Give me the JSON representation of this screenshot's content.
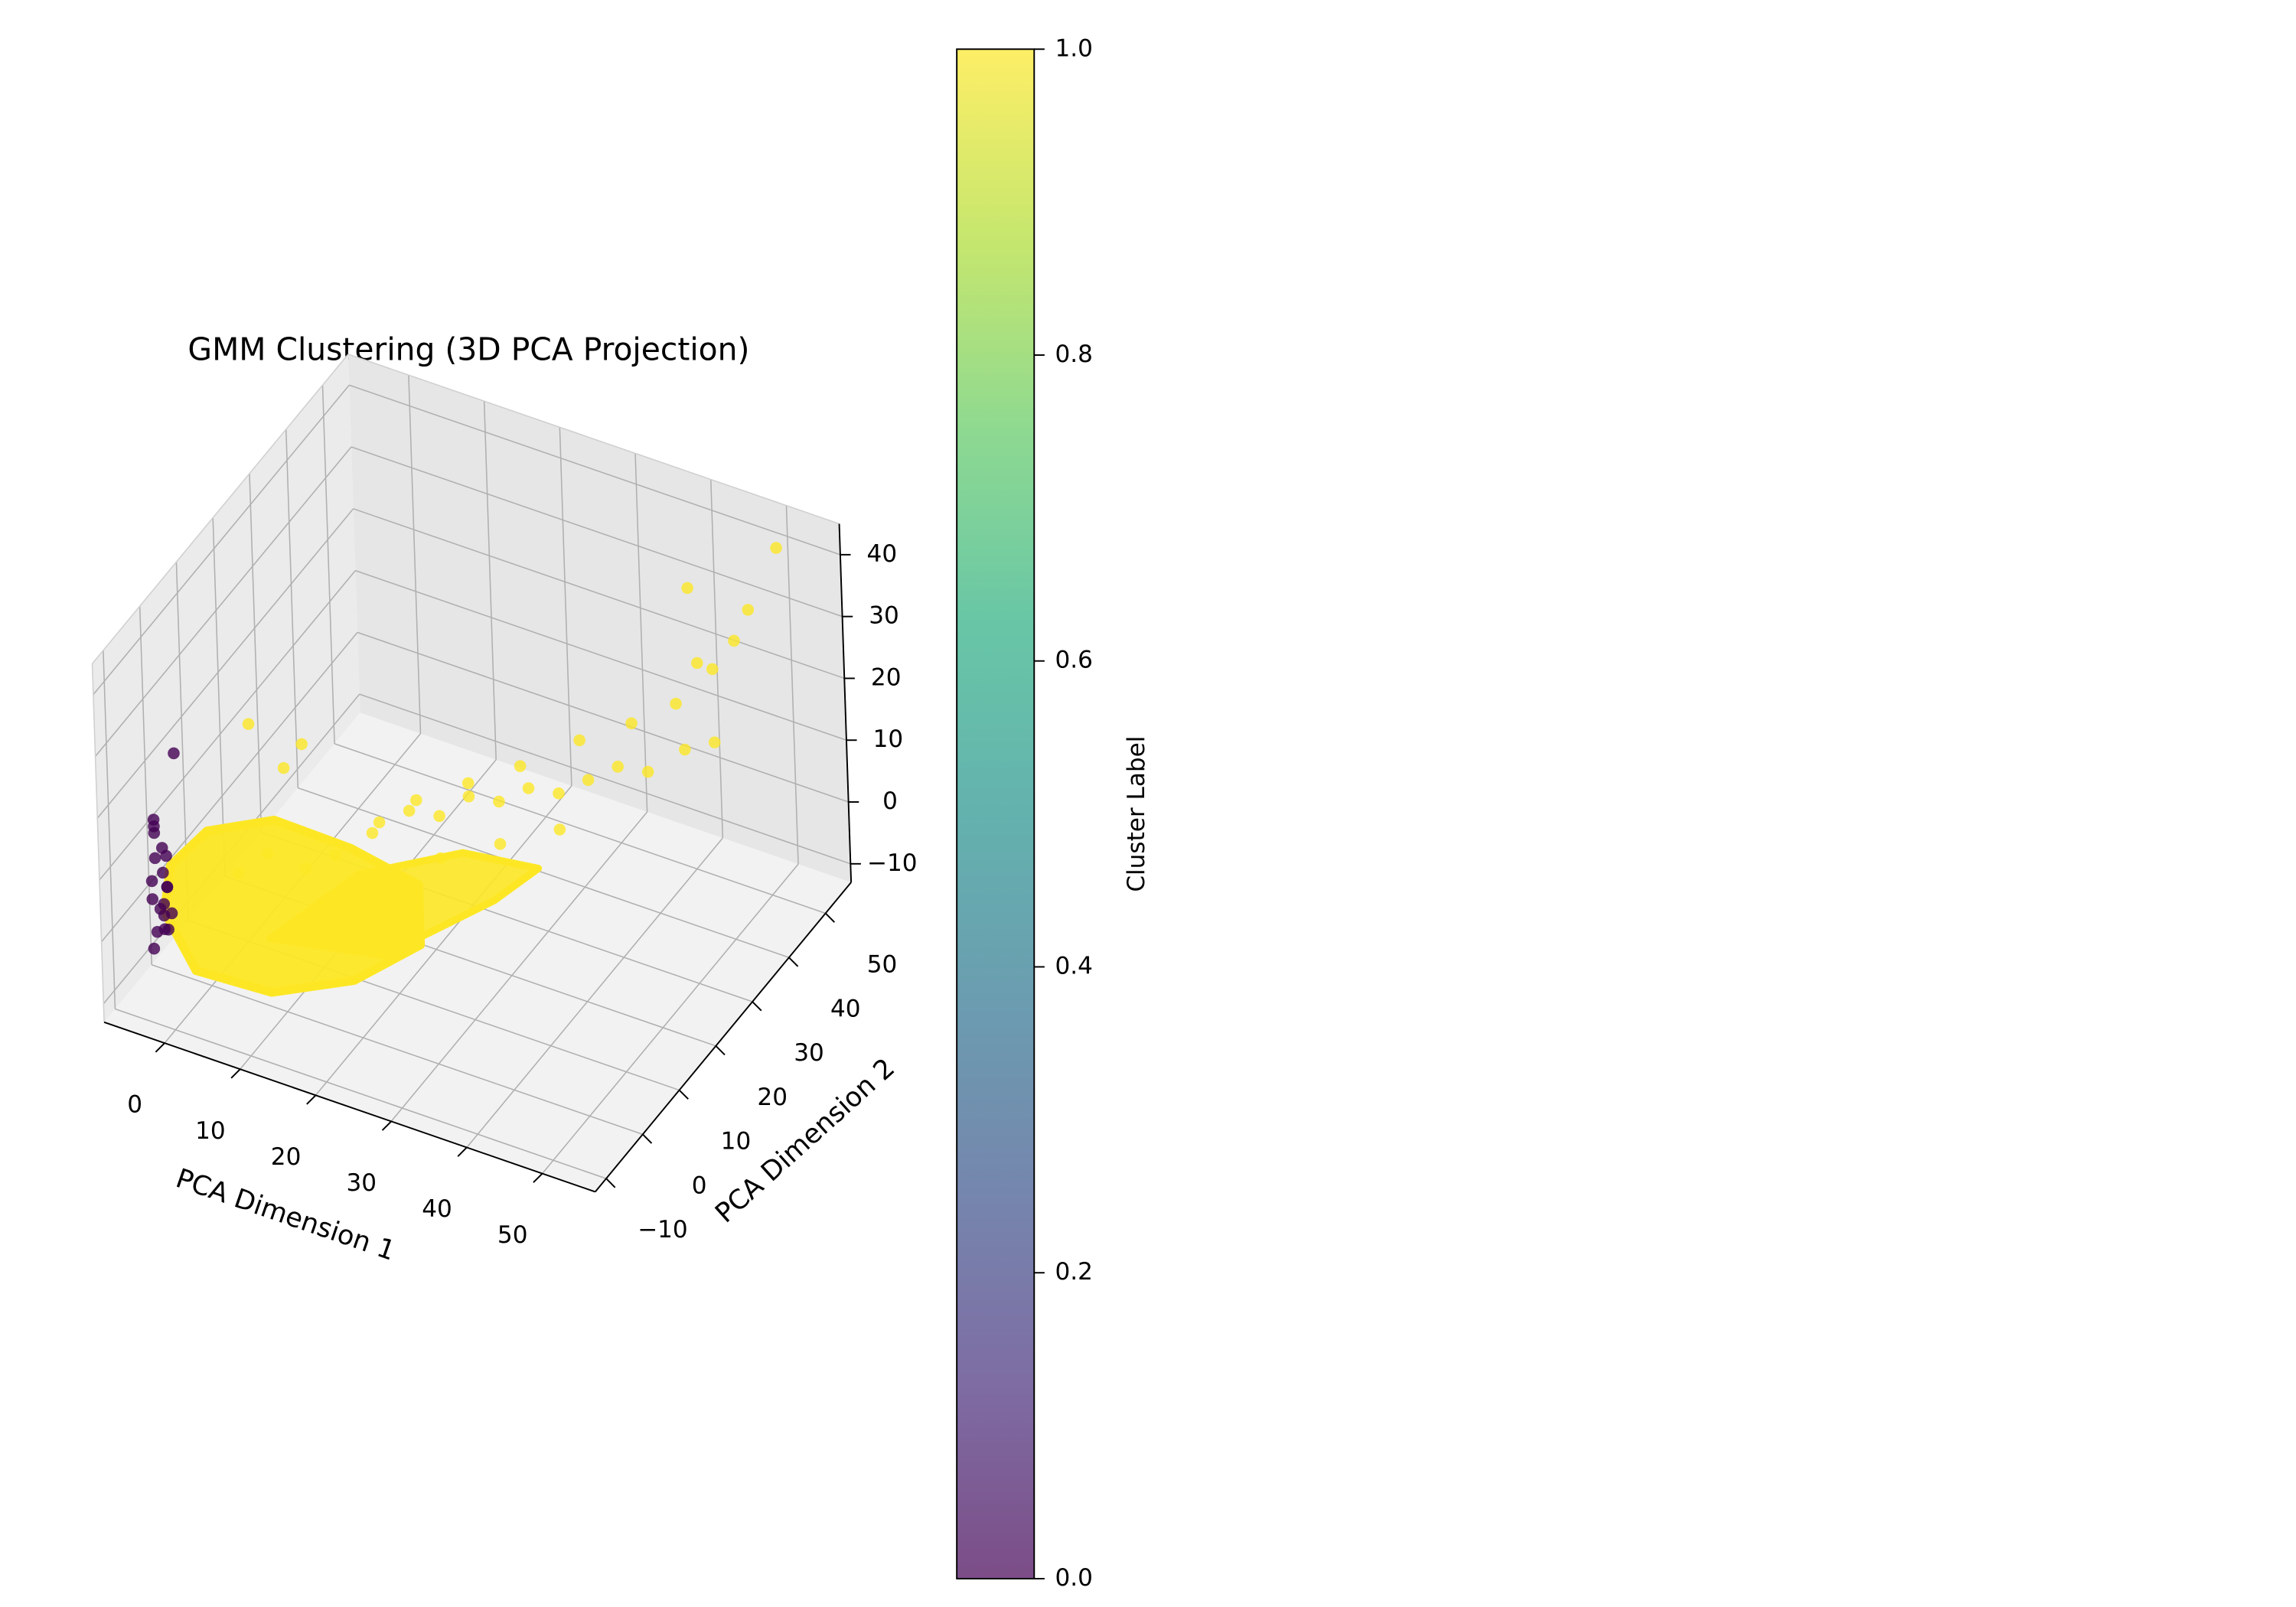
{
  "chart_data": {
    "type": "scatter",
    "projection": "3d",
    "title": "GMM Clustering (3D PCA Projection)",
    "xlabel": "PCA Dimension 1",
    "ylabel": "PCA Dimension 2",
    "zlabel": "",
    "xlim": [
      -8,
      57
    ],
    "ylim": [
      -13,
      57
    ],
    "zlim": [
      -13,
      45
    ],
    "xticks": [
      "0",
      "10",
      "20",
      "30",
      "40",
      "50"
    ],
    "yticks": [
      "−10",
      "0",
      "10",
      "20",
      "30",
      "40",
      "50"
    ],
    "zticks": [
      "−10",
      "0",
      "10",
      "20",
      "30",
      "40"
    ],
    "grid": true,
    "colormap": "viridis",
    "colors": {
      "cluster_0": "#440154",
      "cluster_1": "#fde725"
    },
    "series": [
      {
        "name": "0",
        "points": [
          [
            -2,
            -10,
            2
          ],
          [
            -1.5,
            -9,
            6
          ],
          [
            -2.5,
            -10,
            10
          ],
          [
            -1,
            -8,
            4
          ],
          [
            -2,
            -11,
            0
          ],
          [
            -1,
            -9,
            14
          ],
          [
            -2,
            -10,
            18
          ],
          [
            -1.5,
            -8,
            8
          ],
          [
            -1,
            -10,
            12
          ],
          [
            -2,
            -9,
            5
          ],
          [
            -0.5,
            -10,
            3
          ],
          [
            -2,
            -11,
            8
          ],
          [
            -1,
            -10,
            16
          ],
          [
            -1.5,
            -11,
            20
          ],
          [
            -1,
            -12,
            22
          ],
          [
            -2,
            -8,
            1
          ],
          [
            -1,
            -9,
            9
          ],
          [
            -0.5,
            -11,
            6
          ],
          [
            -2.5,
            -9,
            13
          ],
          [
            2,
            -12,
            34
          ]
        ]
      },
      {
        "name": "1",
        "points": [
          [
            3,
            2,
            5
          ],
          [
            6,
            4,
            8
          ],
          [
            9,
            8,
            4
          ],
          [
            12,
            10,
            6
          ],
          [
            15,
            14,
            8
          ],
          [
            18,
            18,
            10
          ],
          [
            21,
            20,
            9
          ],
          [
            24,
            22,
            12
          ],
          [
            27,
            24,
            11
          ],
          [
            30,
            26,
            13
          ],
          [
            33,
            28,
            12
          ],
          [
            36,
            30,
            14
          ],
          [
            39,
            32,
            16
          ],
          [
            42,
            34,
            15
          ],
          [
            45,
            38,
            17
          ],
          [
            48,
            40,
            18
          ],
          [
            20,
            16,
            14
          ],
          [
            25,
            20,
            16
          ],
          [
            30,
            24,
            18
          ],
          [
            35,
            30,
            20
          ],
          [
            40,
            34,
            22
          ],
          [
            44,
            38,
            24
          ],
          [
            47,
            42,
            28
          ],
          [
            50,
            46,
            36
          ],
          [
            52,
            50,
            44
          ],
          [
            49,
            44,
            32
          ],
          [
            46,
            40,
            30
          ],
          [
            43,
            44,
            38
          ],
          [
            5,
            2,
            30
          ],
          [
            10,
            6,
            26
          ],
          [
            8,
            5,
            22
          ],
          [
            22,
            18,
            4
          ],
          [
            28,
            22,
            6
          ],
          [
            34,
            26,
            8
          ],
          [
            14,
            12,
            2
          ],
          [
            17,
            12,
            12
          ]
        ]
      }
    ],
    "colorbar": {
      "label": "Cluster Label",
      "range": [
        0,
        1
      ],
      "ticks": [
        "0.0",
        "0.2",
        "0.4",
        "0.6",
        "0.8",
        "1.0"
      ]
    }
  }
}
